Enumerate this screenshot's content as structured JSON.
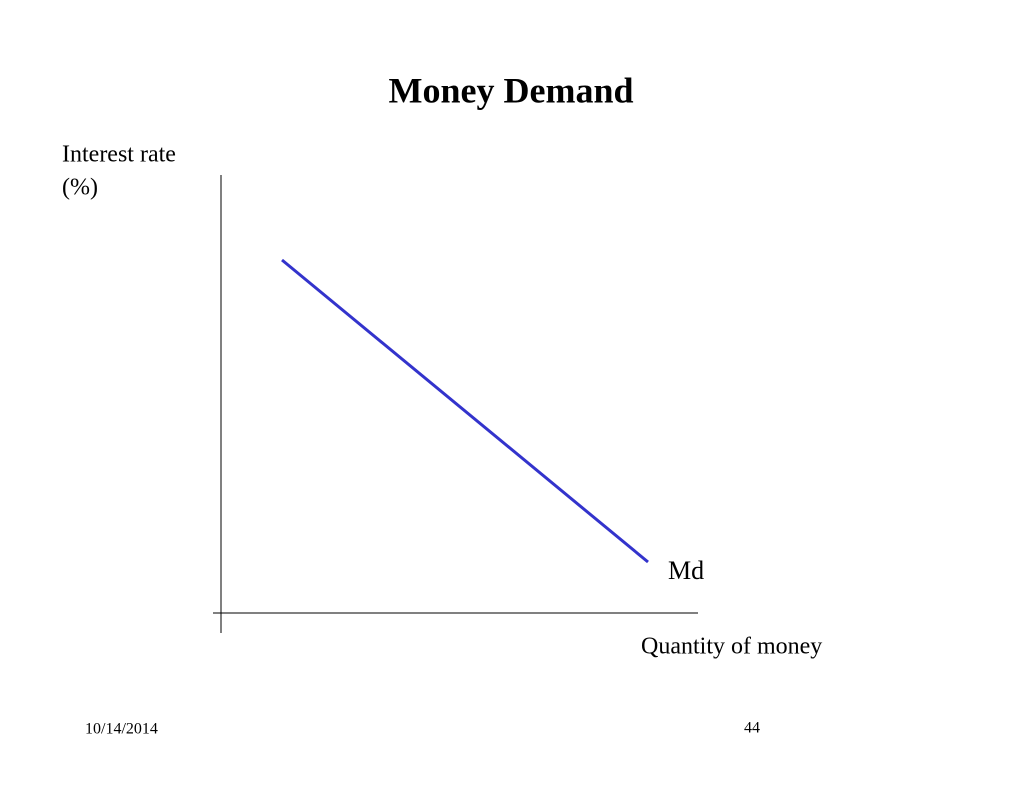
{
  "slide": {
    "title": "Money Demand",
    "y_axis_label": [
      "Interest rate",
      "(%)"
    ],
    "x_axis_label": "Quantity of money",
    "curve_label": "Md",
    "footer": {
      "date": "10/14/2014",
      "page_number": "44"
    }
  }
}
